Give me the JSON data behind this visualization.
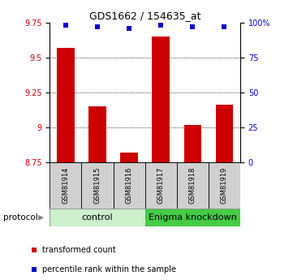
{
  "title": "GDS1662 / 154635_at",
  "samples": [
    "GSM81914",
    "GSM81915",
    "GSM81916",
    "GSM81917",
    "GSM81918",
    "GSM81919"
  ],
  "bar_values": [
    9.57,
    9.15,
    8.82,
    9.65,
    9.02,
    9.16
  ],
  "percentile_values": [
    98,
    97,
    96,
    98,
    97,
    97
  ],
  "bar_color": "#cc0000",
  "percentile_color": "#0000cc",
  "ylim_left": [
    8.75,
    9.75
  ],
  "ylim_right": [
    0,
    100
  ],
  "yticks_left": [
    8.75,
    9.0,
    9.25,
    9.5,
    9.75
  ],
  "yticks_right": [
    0,
    25,
    50,
    75,
    100
  ],
  "ytick_labels_left": [
    "8.75",
    "9",
    "9.25",
    "9.5",
    "9.75"
  ],
  "ytick_labels_right": [
    "0",
    "25",
    "50",
    "75",
    "100%"
  ],
  "hlines": [
    9.0,
    9.25,
    9.5
  ],
  "groups": [
    {
      "label": "control",
      "start": 0,
      "end": 3,
      "color": "#ccf0cc"
    },
    {
      "label": "Enigma knockdown",
      "start": 3,
      "end": 6,
      "color": "#44cc44"
    }
  ],
  "protocol_label": "protocol",
  "legend_items": [
    {
      "label": "transformed count",
      "color": "#cc0000"
    },
    {
      "label": "percentile rank within the sample",
      "color": "#0000cc"
    }
  ],
  "bar_width": 0.55,
  "base_value": 8.75,
  "bg_color": "#ffffff",
  "title_fontsize": 9,
  "tick_fontsize": 7,
  "sample_fontsize": 6,
  "group_fontsize": 8,
  "legend_fontsize": 7
}
